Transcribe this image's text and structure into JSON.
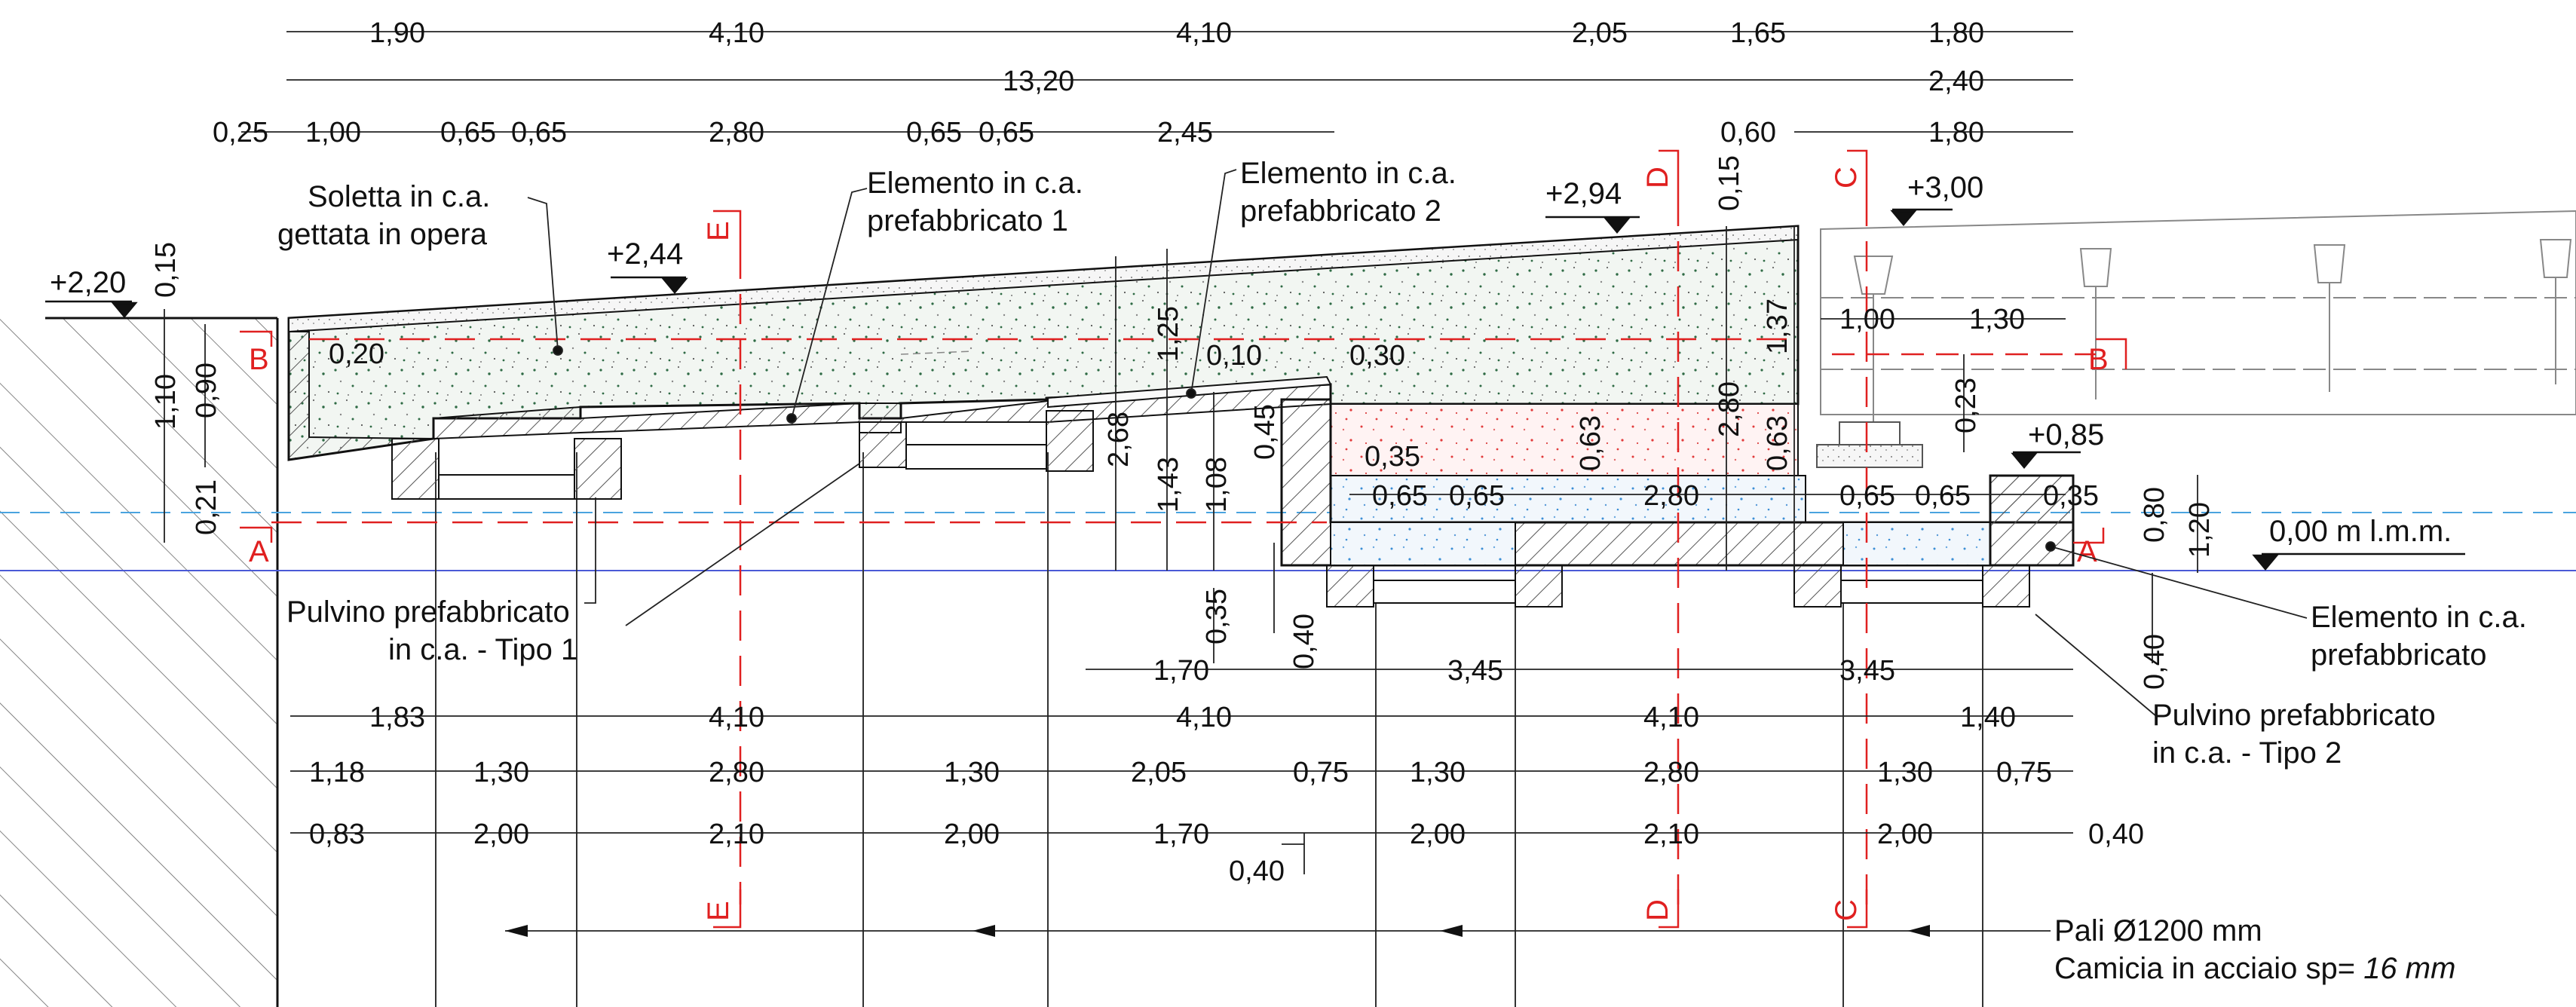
{
  "elevations": {
    "e220": "+2,20",
    "e244": "+2,44",
    "e294": "+2,94",
    "e300": "+3,00",
    "e085": "+0,85",
    "sea": "0,00 m l.m.m."
  },
  "labels": {
    "soletta": [
      "Soletta in c.a.",
      "gettata in opera"
    ],
    "prefab1": [
      "Elemento in c.a.",
      "prefabbricato 1"
    ],
    "prefab2": [
      "Elemento in c.a.",
      "prefabbricato 2"
    ],
    "pulvino1": [
      "Pulvino prefabbricato",
      "in c.a. - Tipo 1"
    ],
    "prefab": [
      "Elemento in c.a.",
      "prefabbricato"
    ],
    "pulvino2": [
      "Pulvino prefabbricato",
      "in c.a. - Tipo 2"
    ],
    "pali1": "Pali Ø1200 mm",
    "pali2_prefix": "Camicia in acciaio sp= ",
    "pali2_value": "16 mm"
  },
  "section_marks": {
    "A": "A",
    "B": "B",
    "C": "C",
    "D": "D",
    "E": "E"
  },
  "dims": {
    "r1": [
      "1,90",
      "4,10",
      "4,10",
      "2,05",
      "1,65",
      "1,80"
    ],
    "r2": [
      "13,20",
      "2,40"
    ],
    "r3": [
      "0,25",
      "1,00",
      "0,65",
      "0,65",
      "2,80",
      "0,65",
      "0,65",
      "2,45",
      "0,60",
      "1,80"
    ],
    "v_left": [
      "0,15",
      "0,90",
      "1,10",
      "0,21"
    ],
    "d020": "0,20",
    "d010": "0,10",
    "d030": "0,30",
    "d125": "1,25",
    "d268": "2,68",
    "d143": "1,43",
    "d108": "1,08",
    "d045": "0,45",
    "d035a": "0,35",
    "d035b": "0,35",
    "d040a": "0,40",
    "d063a": "0,63",
    "d280v": "2,80",
    "d063b": "0,63",
    "d137": "1,37",
    "d015r": "0,15",
    "d023": "0,23",
    "right_top": [
      "1,00",
      "1,30"
    ],
    "slab": [
      "0,65",
      "0,65",
      "2,80",
      "0,65",
      "0,65",
      "0,35"
    ],
    "d035c": "0,35",
    "d080": "0,80",
    "d120": "1,20",
    "d040r": "0,40",
    "rA": [
      "1,70",
      "3,45",
      "3,45"
    ],
    "rB": [
      "1,83",
      "4,10",
      "4,10",
      "4,10",
      "1,40"
    ],
    "rC": [
      "1,18",
      "1,30",
      "2,80",
      "1,30",
      "2,05",
      "0,75",
      "1,30",
      "2,80",
      "1,30",
      "0,75"
    ],
    "rD": [
      "0,83",
      "2,00",
      "2,10",
      "2,00",
      "1,70",
      "2,00",
      "2,10",
      "2,00",
      "0,40"
    ],
    "rD_sub": "0,40"
  }
}
